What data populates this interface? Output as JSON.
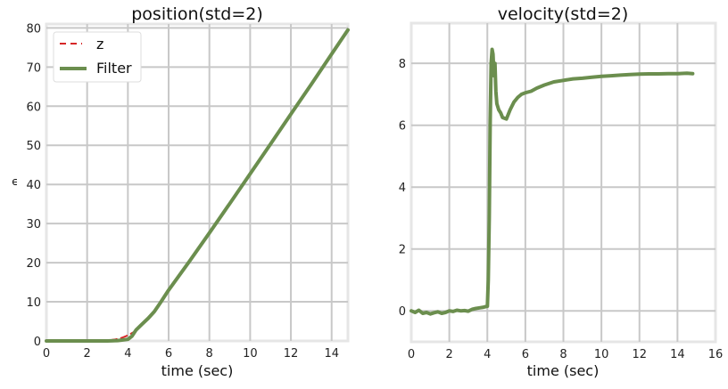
{
  "chart_data": [
    {
      "type": "line",
      "title": "position(std=2)",
      "xlabel": "time (sec)",
      "ylabel": "ϵ",
      "xlim": [
        0,
        14.8
      ],
      "ylim": [
        0,
        81
      ],
      "xticks": [
        0,
        2,
        4,
        6,
        8,
        10,
        12,
        14
      ],
      "yticks": [
        0,
        10,
        20,
        30,
        40,
        50,
        60,
        70,
        80
      ],
      "grid": true,
      "legend": "top-left",
      "series": [
        {
          "name": "z",
          "style": "dashed",
          "color": "#d62728",
          "x": [
            0,
            1,
            2,
            3,
            3.4,
            3.7,
            3.9,
            4.1,
            4.3
          ],
          "y": [
            0,
            0,
            0,
            0.1,
            0.4,
            0.8,
            1.2,
            1.7,
            2.3
          ]
        },
        {
          "name": "Filter",
          "style": "solid",
          "color": "#6b8e4e",
          "x": [
            0,
            1,
            2,
            3,
            3.5,
            4.0,
            4.2,
            4.4,
            4.7,
            5.0,
            5.3,
            5.6,
            6,
            7,
            8,
            9,
            10,
            11,
            12,
            13,
            14,
            14.8
          ],
          "y": [
            0,
            0,
            0,
            0,
            0.1,
            0.4,
            1.2,
            2.8,
            4.3,
            5.8,
            7.5,
            9.8,
            13,
            20.2,
            27.6,
            35.1,
            42.7,
            50.3,
            58,
            65.6,
            73.3,
            79.5
          ]
        }
      ]
    },
    {
      "type": "line",
      "title": "velocity(std=2)",
      "xlabel": "time (sec)",
      "ylabel": "",
      "xlim": [
        0,
        16
      ],
      "ylim": [
        -1,
        9.3
      ],
      "xticks": [
        0,
        2,
        4,
        6,
        8,
        10,
        12,
        14,
        16
      ],
      "yticks": [
        0,
        2,
        4,
        6,
        8
      ],
      "grid": true,
      "series": [
        {
          "color": "#6b8e4e",
          "x": [
            0,
            0.2,
            0.4,
            0.6,
            0.8,
            1.0,
            1.2,
            1.4,
            1.6,
            1.8,
            2.0,
            2.2,
            2.4,
            2.6,
            2.8,
            3.0,
            3.2,
            3.4,
            3.6,
            3.8,
            4.0,
            4.05,
            4.1,
            4.15,
            4.2,
            4.25,
            4.3,
            4.35,
            4.4,
            4.45,
            4.5,
            4.6,
            4.7,
            4.8,
            5.0,
            5.2,
            5.4,
            5.6,
            5.8,
            6.0,
            6.3,
            6.6,
            7.0,
            7.5,
            8.0,
            8.5,
            9.0,
            9.5,
            10.0,
            10.5,
            11.0,
            11.5,
            12.0,
            12.5,
            13.0,
            13.5,
            14.0,
            14.5,
            14.8
          ],
          "y": [
            0,
            -0.05,
            0.02,
            -0.08,
            -0.05,
            -0.1,
            -0.06,
            -0.03,
            -0.08,
            -0.05,
            0,
            -0.02,
            0.02,
            0,
            0.01,
            -0.01,
            0.05,
            0.08,
            0.1,
            0.12,
            0.15,
            1.0,
            3.0,
            6.0,
            8.0,
            8.45,
            8.3,
            7.6,
            8.0,
            7.1,
            6.7,
            6.5,
            6.4,
            6.25,
            6.2,
            6.5,
            6.75,
            6.9,
            7.0,
            7.05,
            7.1,
            7.2,
            7.3,
            7.4,
            7.45,
            7.5,
            7.52,
            7.55,
            7.58,
            7.6,
            7.62,
            7.64,
            7.65,
            7.66,
            7.66,
            7.67,
            7.67,
            7.68,
            7.67
          ]
        }
      ]
    }
  ]
}
